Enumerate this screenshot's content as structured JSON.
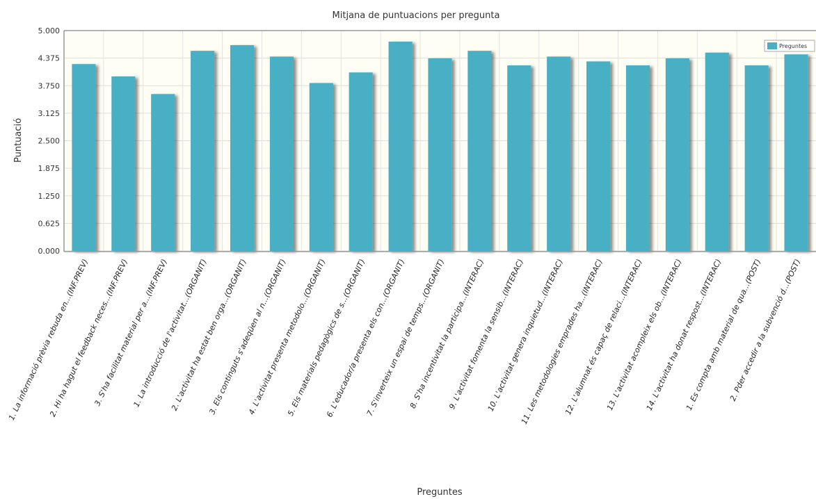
{
  "chart_data": {
    "type": "bar",
    "title": "Mitjana de puntuacions per pregunta",
    "xlabel": "Preguntes",
    "ylabel": "Puntuació",
    "ylim": [
      0,
      5
    ],
    "yticks": [
      "0.000",
      "0.625",
      "1.250",
      "1.875",
      "2.500",
      "3.125",
      "3.750",
      "4.375",
      "5.000"
    ],
    "grid": true,
    "legend_position": "top-right",
    "categories": [
      "1. La informació prèvia rebuda en...(INF.PREV)",
      "2. Hi ha hagut el feedback neces...(INF.PREV)",
      "3. S'ha facilitat material per a...(INF.PREV)",
      "1. La introducció de l'activitat...(ORGANIT)",
      "2. L'activitat ha estat ben orga...(ORGANIT)",
      "3. Els continguts s'adeqüen al n...(ORGANIT)",
      "4. L'activitat presenta metodolo...(ORGANIT)",
      "5. Els materials pedagògics de s...(ORGANIT)",
      "6. L'educador/a presenta els con...(ORGANIT)",
      "7. S'inverteix un espai de temps...(ORGANIT)",
      "8. S'ha incentivitat la participa...(INTERAC)",
      "9. L'activitat fomenta la sensib...(INTERAC)",
      "10. L'activitat genera inquietud...(INTERAC)",
      "11. Les metodologies emprades ha...(INTERAC)",
      "12. L'alumnat és capaç de relaci...(INTERAC)",
      "13. L'activitat acompleix els ob...(INTERAC)",
      "14. L'activitat ha donat respost...(INTERAC)",
      "1. Es compta amb material de qua...(POST)",
      "2. Pder accedir a la subvenció d...(POST)"
    ],
    "series": [
      {
        "name": "Preguntes",
        "color": "#4aafc4",
        "values": [
          4.24,
          3.96,
          3.56,
          4.54,
          4.67,
          4.41,
          3.81,
          4.05,
          4.75,
          4.37,
          4.54,
          4.21,
          4.41,
          4.3,
          4.21,
          4.37,
          4.5,
          4.21,
          4.46
        ]
      }
    ]
  }
}
